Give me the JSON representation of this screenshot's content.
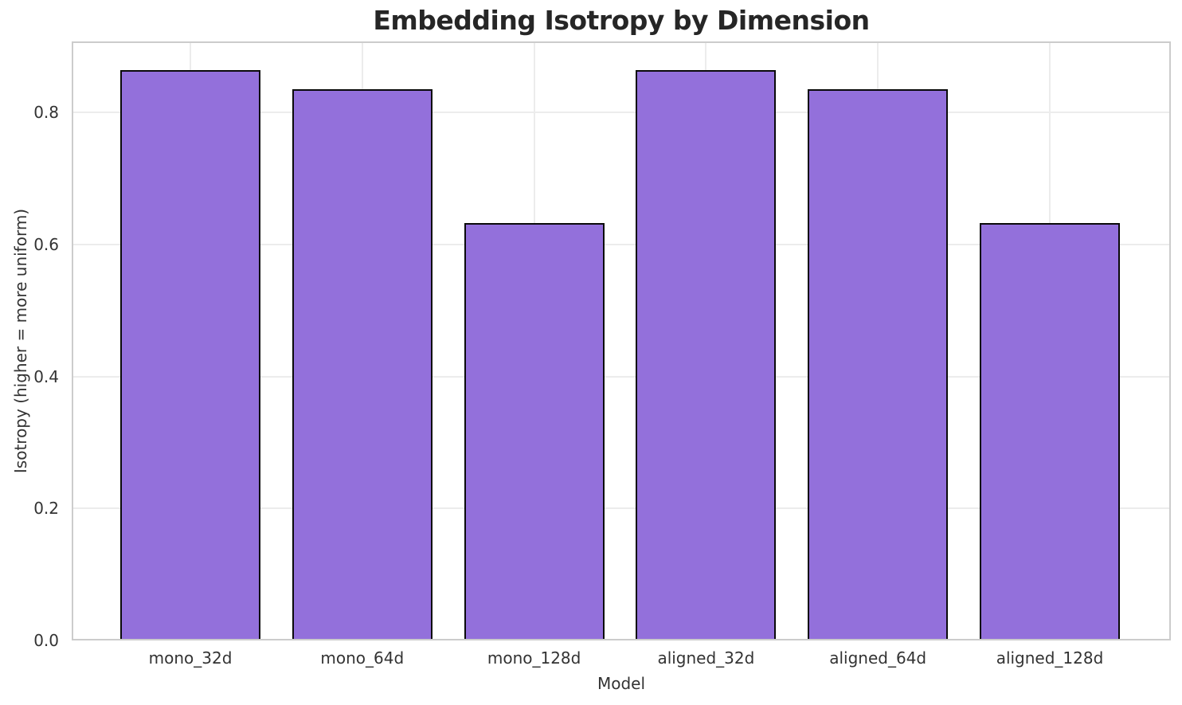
{
  "chart_data": {
    "type": "bar",
    "title": "Embedding Isotropy by Dimension",
    "xlabel": "Model",
    "ylabel": "Isotropy (higher = more uniform)",
    "categories": [
      "mono_32d",
      "mono_64d",
      "mono_128d",
      "aligned_32d",
      "aligned_64d",
      "aligned_128d"
    ],
    "values": [
      0.864,
      0.836,
      0.633,
      0.864,
      0.836,
      0.633
    ],
    "ytick_labels": [
      "0.0",
      "0.2",
      "0.4",
      "0.6",
      "0.8"
    ],
    "ytick_values": [
      0.0,
      0.2,
      0.4,
      0.6,
      0.8
    ],
    "ylim": [
      0,
      0.908
    ],
    "grid": true,
    "legend_position": "none",
    "colors": {
      "bar_fill": "#9370DB",
      "bar_edge": "#0a0a0a",
      "grid": "#ececec",
      "spine": "#cccccc",
      "title_text": "#262626",
      "tick_text": "#333333",
      "label_text": "#333333",
      "background": "#ffffff"
    }
  }
}
